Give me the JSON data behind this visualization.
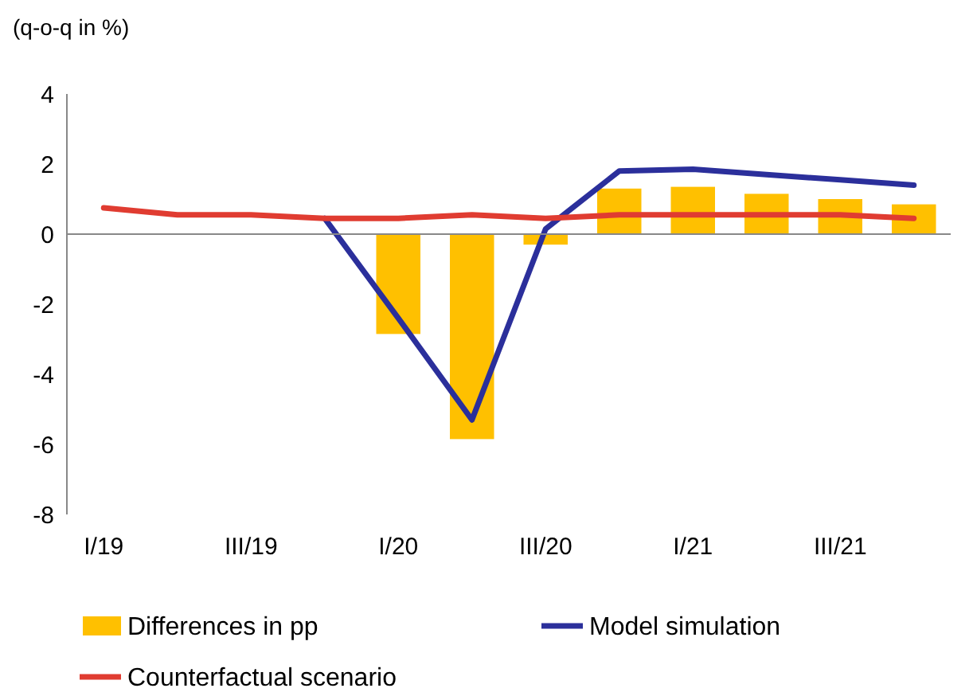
{
  "chart_data": {
    "type": "bar",
    "ylabel": "(q-o-q in %)",
    "categories": [
      "I/19",
      null,
      "III/19",
      null,
      "I/20",
      null,
      "III/20",
      null,
      "I/21",
      null,
      "III/21",
      null
    ],
    "series": [
      {
        "name": "Differences in pp",
        "color": "#ffc000",
        "values": [
          null,
          null,
          null,
          null,
          -2.85,
          -5.85,
          -0.3,
          1.3,
          1.35,
          1.15,
          1.0,
          0.85
        ]
      },
      {
        "name": "Model simulation",
        "type": "line",
        "color": "#2b2f9b",
        "values": [
          null,
          null,
          null,
          0.45,
          -2.4,
          -5.3,
          0.15,
          1.8,
          1.85,
          1.7,
          1.55,
          1.4
        ]
      },
      {
        "name": "Counterfactual scenario",
        "type": "line",
        "color": "#e03c31",
        "values": [
          0.75,
          0.55,
          0.55,
          0.45,
          0.45,
          0.55,
          0.45,
          0.55,
          0.55,
          0.55,
          0.55,
          0.45
        ]
      }
    ],
    "ylim": [
      -8,
      4
    ],
    "yticks": [
      -8,
      -6,
      -4,
      -2,
      0,
      2,
      4
    ],
    "legend": "bottom",
    "marker": "none",
    "line_style": "solid"
  }
}
